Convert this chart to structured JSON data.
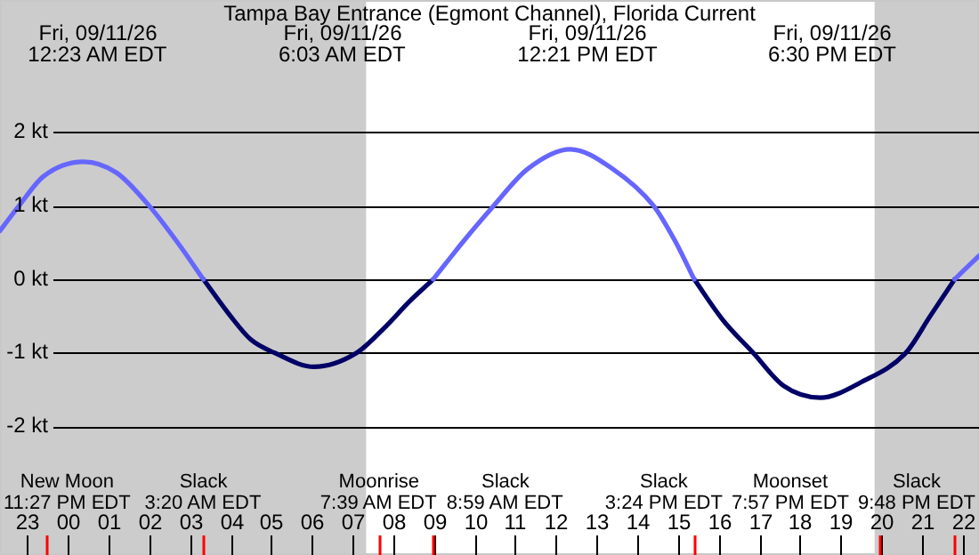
{
  "chart_data": {
    "type": "line",
    "title": "Tampa Bay Entrance (Egmont Channel), Florida Current",
    "series": [
      {
        "color": "#6666ff",
        "x": [
          "--09-10T22:20",
          "--09-10T22:48",
          "--09-10T23:24",
          "--09-11T00:23",
          "--09-11T01:12",
          "--09-11T02:00",
          "--09-11T02:42",
          "--09-11T03:20",
          "--09-11T06:00",
          "--09-11T08:59",
          "--09-11T09:42",
          "--09-11T10:28",
          "--09-11T11:18",
          "--09-11T12:21",
          "--09-11T13:24",
          "--09-11T14:24",
          "--09-11T14:57",
          "--09-11T15:24",
          "--09-11T18:30",
          "--09-11T21:48",
          "--09-11T22:24"
        ],
        "values": [
          0.66,
          1.0,
          1.4,
          1.6,
          1.45,
          1.0,
          0.5,
          0,
          null,
          0,
          0.5,
          1.0,
          1.5,
          1.77,
          1.5,
          1.0,
          0.5,
          0,
          null,
          0,
          0.32
        ]
      },
      {
        "color": "#000066",
        "x": [
          "--09-11T03:20",
          "--09-11T04:00",
          "--09-11T04:30",
          "--09-11T05:05",
          "--09-11T06:03",
          "--09-11T07:06",
          "--09-11T07:48",
          "--09-11T08:24",
          "--09-11T08:59",
          "--09-11T12:00",
          "--09-11T15:24",
          "--09-11T16:06",
          "--09-11T16:51",
          "--09-11T17:36",
          "--09-11T18:30",
          "--09-11T19:30",
          "--09-11T20:36",
          "--09-11T21:12",
          "--09-11T21:48"
        ],
        "values": [
          0,
          -0.5,
          -0.82,
          -1.0,
          -1.19,
          -1.0,
          -0.65,
          -0.3,
          0,
          null,
          0,
          -0.55,
          -1.0,
          -1.45,
          -1.61,
          -1.4,
          -1.0,
          -0.5,
          0
        ]
      }
    ],
    "xlim": [
      "--09-10T22:20",
      "--09-11T22:24"
    ],
    "xticks": [
      {
        "value": "--09-10T23:00",
        "label": "23"
      },
      {
        "value": "--09-10T23:27",
        "label": null
      },
      {
        "value": "--09-11T00:00",
        "label": "00"
      },
      {
        "value": "--09-11T01:00",
        "label": "01"
      },
      {
        "value": "--09-11T02:00",
        "label": "02"
      },
      {
        "value": "--09-11T03:00",
        "label": "03"
      },
      {
        "value": "--09-11T03:20",
        "label": null
      },
      {
        "value": "--09-11T04:00",
        "label": "04"
      },
      {
        "value": "--09-11T05:00",
        "label": "05"
      },
      {
        "value": "--09-11T06:00",
        "label": "06"
      },
      {
        "value": "--09-11T07:00",
        "label": "07"
      },
      {
        "value": "--09-11T07:39",
        "label": null
      },
      {
        "value": "--09-11T08:00",
        "label": "08"
      },
      {
        "value": "--09-11T08:59",
        "label": null
      },
      {
        "value": "--09-11T09:00",
        "label": "09"
      },
      {
        "value": "--09-11T10:00",
        "label": "10"
      },
      {
        "value": "--09-11T11:00",
        "label": "11"
      },
      {
        "value": "--09-11T12:00",
        "label": "12"
      },
      {
        "value": "--09-11T13:00",
        "label": "13"
      },
      {
        "value": "--09-11T14:00",
        "label": "14"
      },
      {
        "value": "--09-11T15:00",
        "label": "15"
      },
      {
        "value": "--09-11T15:24",
        "label": null
      },
      {
        "value": "--09-11T16:00",
        "label": "16"
      },
      {
        "value": "--09-11T17:00",
        "label": "17"
      },
      {
        "value": "--09-11T18:00",
        "label": "18"
      },
      {
        "value": "--09-11T19:00",
        "label": "19"
      },
      {
        "value": "--09-11T19:57",
        "label": null
      },
      {
        "value": "--09-11T20:00",
        "label": "20"
      },
      {
        "value": "--09-11T21:00",
        "label": "21"
      },
      {
        "value": "--09-11T21:48",
        "label": null
      },
      {
        "value": "--09-11T22:00",
        "label": "22"
      }
    ],
    "ylim": [
      -3.75,
      3.8
    ],
    "yticks": [
      {
        "value": -2,
        "label": "-2 kt"
      },
      {
        "value": -1,
        "label": "-1 kt"
      },
      {
        "value": 0,
        "label": "0 kt"
      },
      {
        "value": 1,
        "label": "1 kt"
      },
      {
        "value": 2,
        "label": "2 kt"
      }
    ],
    "grid": "y",
    "legend": false,
    "marker": "none",
    "line_style": "solid",
    "bands": [
      {
        "axis": "x",
        "from": "--09-10T22:20",
        "to": "--09-11T07:20",
        "color": "#cccccc"
      },
      {
        "axis": "x",
        "from": "--09-11T19:50",
        "to": "--09-11T22:24",
        "color": "#cccccc"
      }
    ],
    "annotations": [
      "Fri, 09/11/26\n12:23 AM EDT",
      "Fri, 09/11/26\n6:03 AM EDT",
      "Fri, 09/11/26\n12:21 PM EDT",
      "Fri, 09/11/26\n6:30 PM EDT",
      "New Moon\n11:27 PM EDT",
      "Slack\n3:20 AM EDT",
      "Moonrise\n7:39 AM EDT",
      "Slack\n8:59 AM EDT",
      "Slack\n3:24 PM EDT",
      "Moonset\n7:57 PM EDT",
      "Slack\n9:48 PM EDT"
    ]
  }
}
